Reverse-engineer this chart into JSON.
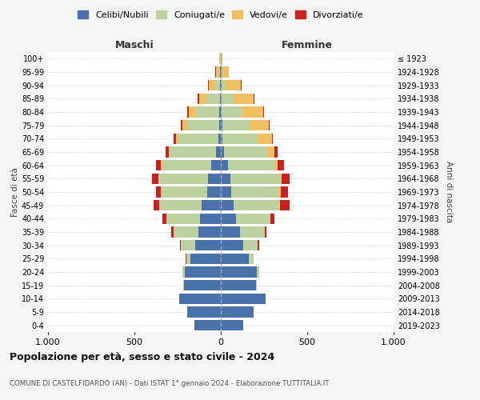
{
  "age_groups": [
    "0-4",
    "5-9",
    "10-14",
    "15-19",
    "20-24",
    "25-29",
    "30-34",
    "35-39",
    "40-44",
    "45-49",
    "50-54",
    "55-59",
    "60-64",
    "65-69",
    "70-74",
    "75-79",
    "80-84",
    "85-89",
    "90-94",
    "95-99",
    "100+"
  ],
  "birth_years": [
    "2019-2023",
    "2014-2018",
    "2009-2013",
    "2004-2008",
    "1999-2003",
    "1994-1998",
    "1989-1993",
    "1984-1988",
    "1979-1983",
    "1974-1978",
    "1969-1973",
    "1964-1968",
    "1959-1963",
    "1954-1958",
    "1949-1953",
    "1944-1948",
    "1939-1943",
    "1934-1938",
    "1929-1933",
    "1924-1928",
    "≤ 1923"
  ],
  "colors": {
    "celibi": "#4a72aa",
    "coniugati": "#bdd0a0",
    "vedovi": "#f0c060",
    "divorziati": "#cc2020"
  },
  "males": {
    "celibi": [
      155,
      195,
      240,
      215,
      210,
      175,
      150,
      130,
      120,
      110,
      80,
      75,
      55,
      30,
      15,
      10,
      8,
      5,
      3,
      3,
      2
    ],
    "coniugati": [
      0,
      0,
      0,
      2,
      10,
      25,
      80,
      145,
      195,
      245,
      265,
      285,
      285,
      265,
      230,
      185,
      140,
      80,
      30,
      8,
      2
    ],
    "vedovi": [
      0,
      0,
      0,
      0,
      0,
      0,
      0,
      0,
      2,
      2,
      2,
      3,
      5,
      5,
      15,
      25,
      35,
      40,
      35,
      18,
      3
    ],
    "divorziati": [
      0,
      0,
      0,
      0,
      0,
      2,
      5,
      10,
      20,
      30,
      30,
      35,
      30,
      20,
      15,
      12,
      12,
      10,
      5,
      2,
      0
    ]
  },
  "females": {
    "nubili": [
      130,
      190,
      260,
      205,
      210,
      160,
      130,
      110,
      90,
      75,
      60,
      55,
      40,
      20,
      10,
      8,
      6,
      5,
      3,
      3,
      2
    ],
    "coniugate": [
      0,
      0,
      0,
      2,
      10,
      30,
      85,
      145,
      195,
      265,
      280,
      290,
      275,
      250,
      205,
      160,
      120,
      70,
      25,
      8,
      2
    ],
    "vedove": [
      0,
      0,
      0,
      0,
      0,
      0,
      0,
      0,
      2,
      3,
      5,
      8,
      15,
      40,
      80,
      110,
      120,
      115,
      90,
      35,
      5
    ],
    "divorziate": [
      0,
      0,
      0,
      0,
      0,
      2,
      5,
      10,
      25,
      55,
      45,
      45,
      35,
      20,
      8,
      5,
      5,
      5,
      3,
      2,
      0
    ]
  },
  "xlim": 1000,
  "title": "Popolazione per età, sesso e stato civile - 2024",
  "subtitle": "COMUNE DI CASTELFIDARDO (AN) - Dati ISTAT 1° gennaio 2024 - Elaborazione TUTTITALIA.IT",
  "xlabel_left": "Maschi",
  "xlabel_right": "Femmine",
  "ylabel_left": "Fasce di età",
  "ylabel_right": "Anni di nascita",
  "legend_labels": [
    "Celibi/Nubili",
    "Coniugati/e",
    "Vedovi/e",
    "Divorziati/e"
  ],
  "bg_color": "#f5f5f5",
  "plot_bg_color": "#ffffff",
  "grid_color": "#cccccc"
}
